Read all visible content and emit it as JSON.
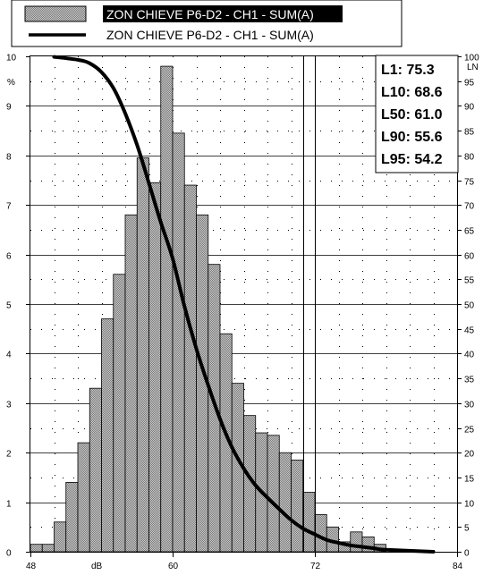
{
  "chart_data": {
    "type": "bar",
    "xlabel": "dB",
    "ylabel": "%",
    "y2label": "LN",
    "xlim": [
      48,
      84
    ],
    "ylim": [
      0,
      10
    ],
    "y2lim": [
      0,
      100
    ],
    "xticks": [
      "48",
      "60",
      "72",
      "84"
    ],
    "yticks": [
      "0",
      "1",
      "2",
      "3",
      "4",
      "5",
      "6",
      "7",
      "8",
      "9",
      "10"
    ],
    "y2ticks": [
      "0",
      "5",
      "10",
      "15",
      "20",
      "25",
      "30",
      "35",
      "40",
      "45",
      "50",
      "55",
      "60",
      "65",
      "70",
      "75",
      "80",
      "85",
      "90",
      "95",
      "100"
    ],
    "legend": [
      {
        "label": "ZON CHIEVE P6-D2 - CH1 - SUM(A)",
        "kind": "histogram"
      },
      {
        "label": "ZON CHIEVE P6-D2 - CH1 - SUM(A)",
        "kind": "cumulative"
      }
    ],
    "bin_width": 1,
    "histogram": {
      "bin_start": [
        48,
        49,
        50,
        51,
        52,
        53,
        54,
        55,
        56,
        57,
        58,
        59,
        60,
        61,
        62,
        63,
        64,
        65,
        66,
        67,
        68,
        69,
        70,
        71,
        72,
        73,
        74,
        75,
        76,
        77
      ],
      "values": [
        0.15,
        0.15,
        0.6,
        1.4,
        2.2,
        3.3,
        4.7,
        5.6,
        6.8,
        7.95,
        7.45,
        9.8,
        8.45,
        7.4,
        6.8,
        5.8,
        4.4,
        3.4,
        2.75,
        2.4,
        2.35,
        2.0,
        1.85,
        1.2,
        0.75,
        0.5,
        0.2,
        0.4,
        0.3,
        0.15
      ]
    },
    "cumulative": {
      "name": "LN",
      "x": [
        50,
        52,
        53,
        54,
        55,
        56,
        57,
        58,
        59,
        60,
        61,
        62,
        63,
        64,
        65,
        66,
        67,
        68,
        69,
        70,
        71,
        72,
        73,
        74,
        75,
        76,
        77,
        78,
        82
      ],
      "y": [
        99.9,
        99.3,
        98.6,
        96.8,
        93.6,
        88.5,
        82.1,
        74.4,
        66.5,
        59.2,
        49.5,
        41.0,
        33.6,
        26.8,
        21.1,
        16.8,
        13.4,
        10.9,
        8.6,
        6.4,
        4.7,
        3.5,
        2.4,
        1.8,
        1.3,
        1.0,
        0.7,
        0.4,
        0.0
      ]
    },
    "markers_x": [
      71,
      72
    ],
    "grid": "dotted",
    "stats": [
      "L1: 75.3",
      "L10: 68.6",
      "L50: 61.0",
      "L90: 55.6",
      "L95: 54.2"
    ]
  }
}
